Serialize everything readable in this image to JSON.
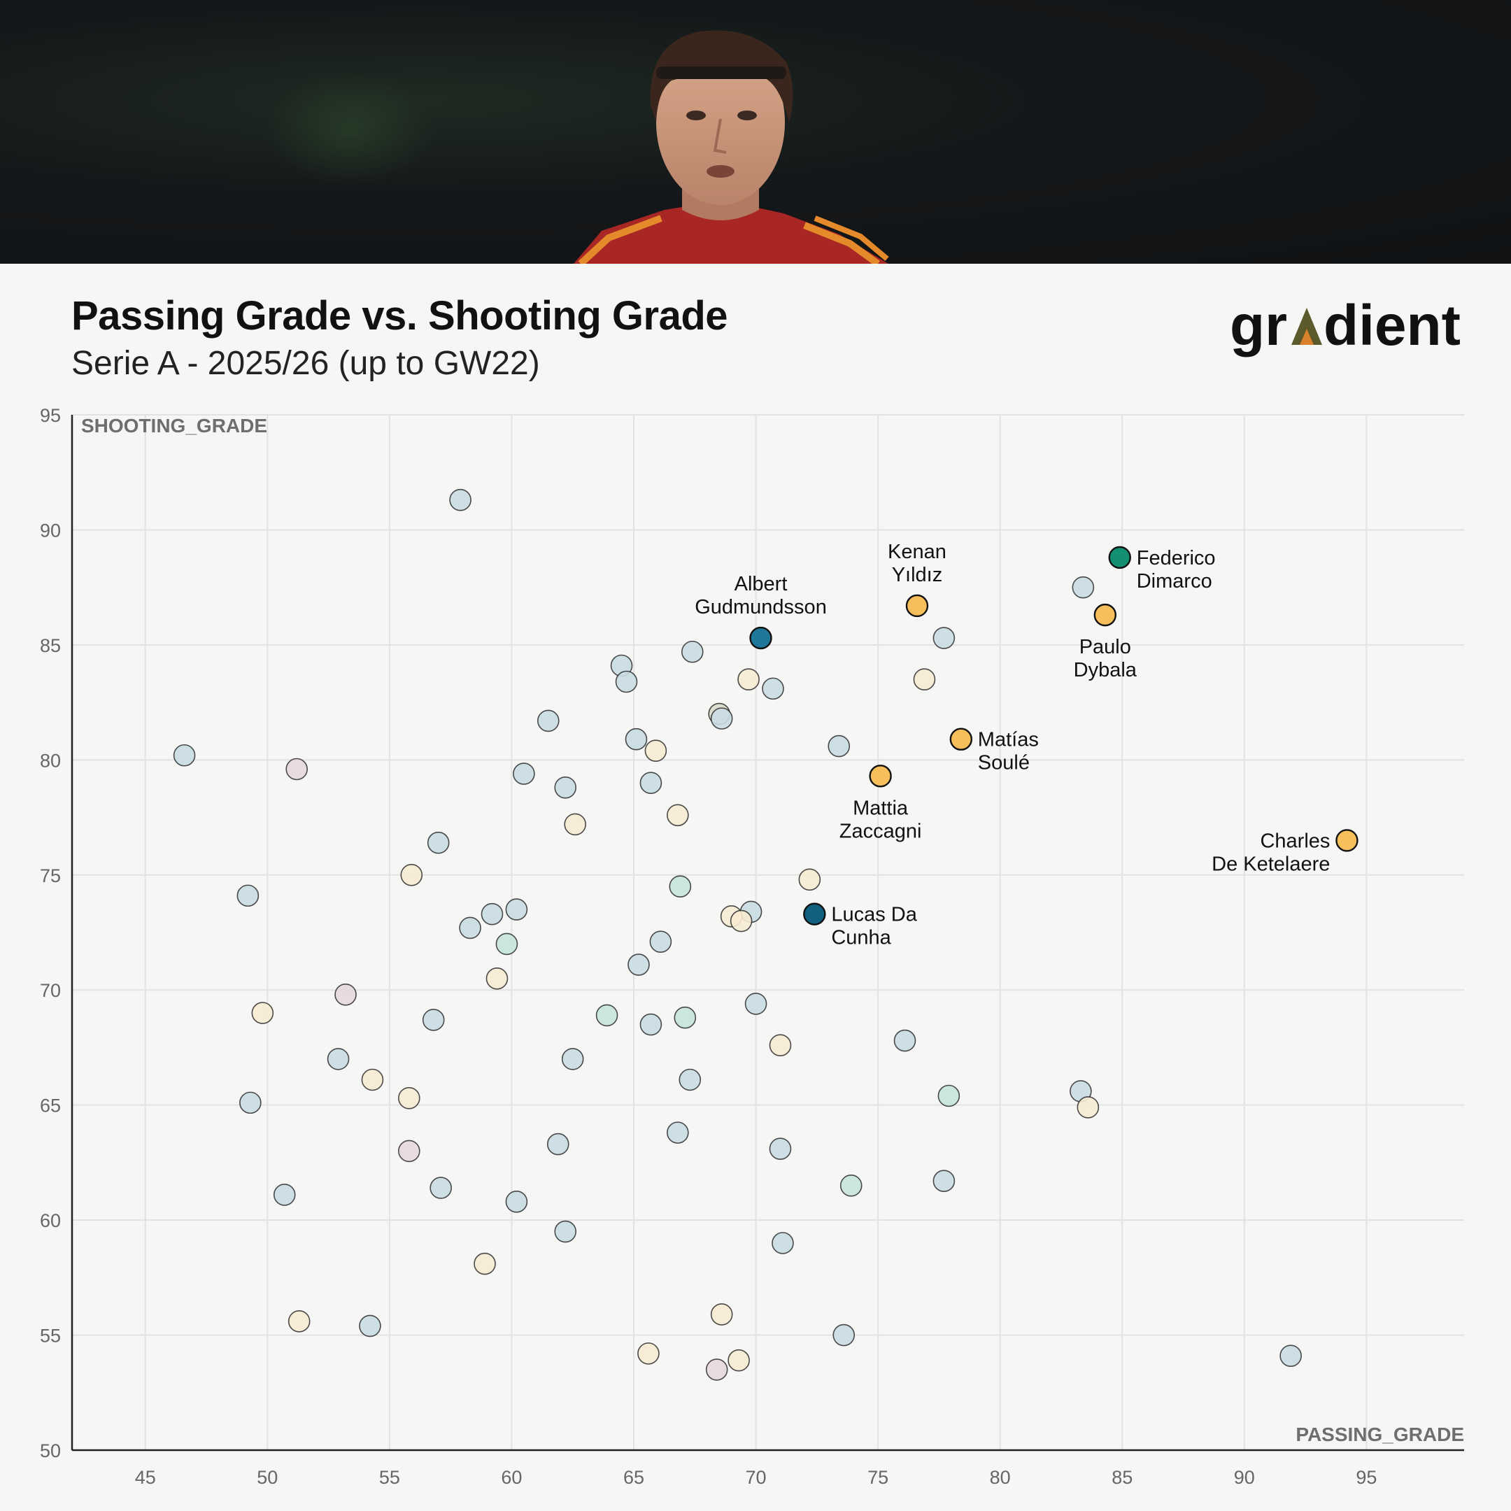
{
  "header": {
    "title": "Passing Grade vs. Shooting Grade",
    "subtitle": "Serie A - 2025/26 (up to GW22)",
    "logo_text": "gradient",
    "logo_color_main": "#111111",
    "logo_color_accent": "#5a5a2a",
    "logo_color_accent2": "#d9822b"
  },
  "chart_data": {
    "type": "scatter",
    "xlabel": "PASSING_GRADE",
    "ylabel": "SHOOTING_GRADE",
    "xlim": [
      42,
      99
    ],
    "ylim": [
      50,
      95
    ],
    "xticks": [
      45,
      50,
      55,
      60,
      65,
      70,
      75,
      80,
      85,
      90,
      95
    ],
    "yticks": [
      50,
      55,
      60,
      65,
      70,
      75,
      80,
      85,
      90,
      95
    ],
    "grid": true,
    "colors": {
      "light_blue": "#c9dde3",
      "light_cream": "#f7ebd2",
      "light_mauve": "#e5d8de",
      "light_teal": "#c6e6da",
      "light_olive": "#d9dccb",
      "orange": "#f7bf5c",
      "green": "#138f71",
      "blue": "#1f7799",
      "dark_blue": "#10607e"
    },
    "highlighted": [
      {
        "name": "Federico Dimarco",
        "lines": [
          "Federico",
          "Dimarco"
        ],
        "x": 84.9,
        "y": 88.8,
        "color": "green",
        "label_pos": "right"
      },
      {
        "name": "Kenan Yıldız",
        "lines": [
          "Kenan",
          "Yıldız"
        ],
        "x": 76.6,
        "y": 86.7,
        "color": "orange",
        "label_pos": "above"
      },
      {
        "name": "Paulo Dybala",
        "lines": [
          "Paulo",
          "Dybala"
        ],
        "x": 84.3,
        "y": 86.3,
        "color": "orange",
        "label_pos": "below"
      },
      {
        "name": "Albert Gudmundsson",
        "lines": [
          "Albert",
          "Gudmundsson"
        ],
        "x": 70.2,
        "y": 85.3,
        "color": "blue",
        "label_pos": "above"
      },
      {
        "name": "Matías Soulé",
        "lines": [
          "Matías",
          "Soulé"
        ],
        "x": 78.4,
        "y": 80.9,
        "color": "orange",
        "label_pos": "right"
      },
      {
        "name": "Mattia Zaccagni",
        "lines": [
          "Mattia",
          "Zaccagni"
        ],
        "x": 75.1,
        "y": 79.3,
        "color": "orange",
        "label_pos": "below"
      },
      {
        "name": "Charles De Ketelaere",
        "lines": [
          "Charles",
          "De Ketelaere"
        ],
        "x": 94.2,
        "y": 76.5,
        "color": "orange",
        "label_pos": "left"
      },
      {
        "name": "Lucas Da Cunha",
        "lines": [
          "Lucas Da",
          "Cunha"
        ],
        "x": 72.4,
        "y": 73.3,
        "color": "dark_blue",
        "label_pos": "right"
      }
    ],
    "points": [
      {
        "x": 57.9,
        "y": 91.3,
        "c": "light_blue"
      },
      {
        "x": 83.4,
        "y": 87.5,
        "c": "light_blue"
      },
      {
        "x": 77.7,
        "y": 85.3,
        "c": "light_blue"
      },
      {
        "x": 67.4,
        "y": 84.7,
        "c": "light_blue"
      },
      {
        "x": 64.5,
        "y": 84.1,
        "c": "light_blue"
      },
      {
        "x": 64.7,
        "y": 83.4,
        "c": "light_blue"
      },
      {
        "x": 69.7,
        "y": 83.5,
        "c": "light_cream"
      },
      {
        "x": 70.7,
        "y": 83.1,
        "c": "light_blue"
      },
      {
        "x": 76.9,
        "y": 83.5,
        "c": "light_cream"
      },
      {
        "x": 68.5,
        "y": 82.0,
        "c": "light_olive"
      },
      {
        "x": 68.6,
        "y": 81.8,
        "c": "light_blue"
      },
      {
        "x": 61.5,
        "y": 81.7,
        "c": "light_blue"
      },
      {
        "x": 65.1,
        "y": 80.9,
        "c": "light_blue"
      },
      {
        "x": 65.9,
        "y": 80.4,
        "c": "light_cream"
      },
      {
        "x": 73.4,
        "y": 80.6,
        "c": "light_blue"
      },
      {
        "x": 46.6,
        "y": 80.2,
        "c": "light_blue"
      },
      {
        "x": 51.2,
        "y": 79.6,
        "c": "light_mauve"
      },
      {
        "x": 60.5,
        "y": 79.4,
        "c": "light_blue"
      },
      {
        "x": 65.7,
        "y": 79.0,
        "c": "light_blue"
      },
      {
        "x": 62.2,
        "y": 78.8,
        "c": "light_blue"
      },
      {
        "x": 66.8,
        "y": 77.6,
        "c": "light_cream"
      },
      {
        "x": 62.6,
        "y": 77.2,
        "c": "light_cream"
      },
      {
        "x": 57.0,
        "y": 76.4,
        "c": "light_blue"
      },
      {
        "x": 55.9,
        "y": 75.0,
        "c": "light_cream"
      },
      {
        "x": 72.2,
        "y": 74.8,
        "c": "light_cream"
      },
      {
        "x": 66.9,
        "y": 74.5,
        "c": "light_teal"
      },
      {
        "x": 49.2,
        "y": 74.1,
        "c": "light_blue"
      },
      {
        "x": 60.2,
        "y": 73.5,
        "c": "light_blue"
      },
      {
        "x": 59.2,
        "y": 73.3,
        "c": "light_blue"
      },
      {
        "x": 69.8,
        "y": 73.4,
        "c": "light_blue"
      },
      {
        "x": 69.0,
        "y": 73.2,
        "c": "light_cream"
      },
      {
        "x": 69.4,
        "y": 73.0,
        "c": "light_cream"
      },
      {
        "x": 58.3,
        "y": 72.7,
        "c": "light_blue"
      },
      {
        "x": 59.8,
        "y": 72.0,
        "c": "light_teal"
      },
      {
        "x": 66.1,
        "y": 72.1,
        "c": "light_blue"
      },
      {
        "x": 65.2,
        "y": 71.1,
        "c": "light_blue"
      },
      {
        "x": 59.4,
        "y": 70.5,
        "c": "light_cream"
      },
      {
        "x": 53.2,
        "y": 69.8,
        "c": "light_mauve"
      },
      {
        "x": 70.0,
        "y": 69.4,
        "c": "light_blue"
      },
      {
        "x": 49.8,
        "y": 69.0,
        "c": "light_cream"
      },
      {
        "x": 63.9,
        "y": 68.9,
        "c": "light_teal"
      },
      {
        "x": 67.1,
        "y": 68.8,
        "c": "light_teal"
      },
      {
        "x": 56.8,
        "y": 68.7,
        "c": "light_blue"
      },
      {
        "x": 65.7,
        "y": 68.5,
        "c": "light_blue"
      },
      {
        "x": 76.1,
        "y": 67.8,
        "c": "light_blue"
      },
      {
        "x": 71.0,
        "y": 67.6,
        "c": "light_cream"
      },
      {
        "x": 52.9,
        "y": 67.0,
        "c": "light_blue"
      },
      {
        "x": 62.5,
        "y": 67.0,
        "c": "light_blue"
      },
      {
        "x": 54.3,
        "y": 66.1,
        "c": "light_cream"
      },
      {
        "x": 67.3,
        "y": 66.1,
        "c": "light_blue"
      },
      {
        "x": 83.3,
        "y": 65.6,
        "c": "light_blue"
      },
      {
        "x": 77.9,
        "y": 65.4,
        "c": "light_teal"
      },
      {
        "x": 55.8,
        "y": 65.3,
        "c": "light_cream"
      },
      {
        "x": 49.3,
        "y": 65.1,
        "c": "light_blue"
      },
      {
        "x": 83.6,
        "y": 64.9,
        "c": "light_cream"
      },
      {
        "x": 66.8,
        "y": 63.8,
        "c": "light_blue"
      },
      {
        "x": 61.9,
        "y": 63.3,
        "c": "light_blue"
      },
      {
        "x": 71.0,
        "y": 63.1,
        "c": "light_blue"
      },
      {
        "x": 55.8,
        "y": 63.0,
        "c": "light_mauve"
      },
      {
        "x": 77.7,
        "y": 61.7,
        "c": "light_blue"
      },
      {
        "x": 73.9,
        "y": 61.5,
        "c": "light_teal"
      },
      {
        "x": 57.1,
        "y": 61.4,
        "c": "light_blue"
      },
      {
        "x": 50.7,
        "y": 61.1,
        "c": "light_blue"
      },
      {
        "x": 60.2,
        "y": 60.8,
        "c": "light_blue"
      },
      {
        "x": 62.2,
        "y": 59.5,
        "c": "light_blue"
      },
      {
        "x": 71.1,
        "y": 59.0,
        "c": "light_blue"
      },
      {
        "x": 58.9,
        "y": 58.1,
        "c": "light_cream"
      },
      {
        "x": 68.6,
        "y": 55.9,
        "c": "light_cream"
      },
      {
        "x": 51.3,
        "y": 55.6,
        "c": "light_cream"
      },
      {
        "x": 54.2,
        "y": 55.4,
        "c": "light_blue"
      },
      {
        "x": 73.6,
        "y": 55.0,
        "c": "light_blue"
      },
      {
        "x": 65.6,
        "y": 54.2,
        "c": "light_cream"
      },
      {
        "x": 91.9,
        "y": 54.1,
        "c": "light_blue"
      },
      {
        "x": 69.3,
        "y": 53.9,
        "c": "light_cream"
      },
      {
        "x": 68.4,
        "y": 53.5,
        "c": "light_mauve"
      }
    ]
  }
}
